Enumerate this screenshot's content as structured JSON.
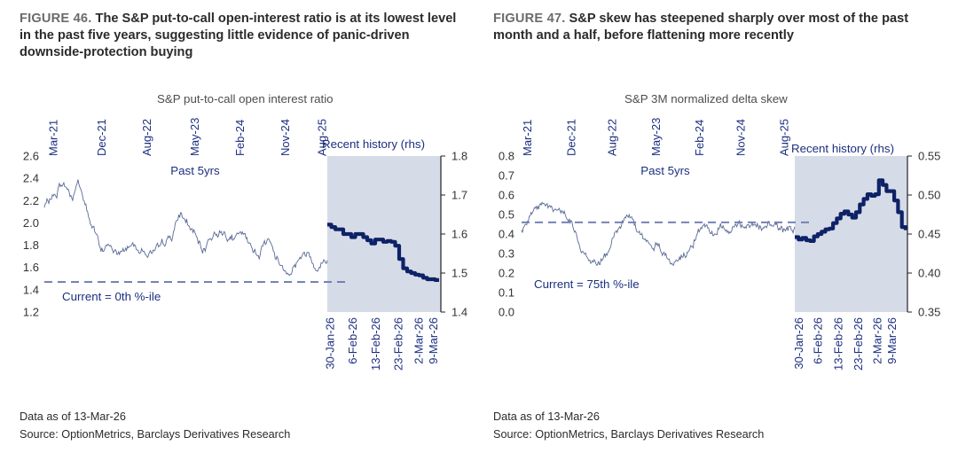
{
  "figures": [
    {
      "label": "FIGURE 46.",
      "title": "The S&P put-to-call open-interest ratio is at its lowest level in the past five years, suggesting little evidence of panic-driven downside-protection buying",
      "data_as_of": "Data as of 13-Mar-26",
      "source": "Source: OptionMetrics, Barclays Derivatives Research"
    },
    {
      "label": "FIGURE 47.",
      "title": "S&P skew has steepened sharply over most of the past month and a half, before flattening more recently",
      "data_as_of": "Data as of 13-Mar-26",
      "source": "Source: OptionMetrics, Barclays Derivatives Research"
    }
  ],
  "chart_data": [
    {
      "type": "line",
      "title": "S&P put-to-call open interest ratio",
      "panels": [
        {
          "name": "Past 5yrs",
          "axis": "left",
          "ylim": [
            1.2,
            2.6
          ],
          "yticks": [
            "1.2",
            "1.4",
            "1.6",
            "1.8",
            "2.0",
            "2.2",
            "2.4",
            "2.6"
          ],
          "xticks": [
            "Mar-21",
            "Dec-21",
            "Aug-22",
            "May-23",
            "Feb-24",
            "Nov-24",
            "Aug-25"
          ],
          "anchors": [
            [
              0,
              2.14
            ],
            [
              0.02,
              2.22
            ],
            [
              0.04,
              2.25
            ],
            [
              0.06,
              2.36
            ],
            [
              0.08,
              2.31
            ],
            [
              0.1,
              2.22
            ],
            [
              0.12,
              2.38
            ],
            [
              0.14,
              2.2
            ],
            [
              0.16,
              2.02
            ],
            [
              0.18,
              1.93
            ],
            [
              0.2,
              1.73
            ],
            [
              0.22,
              1.81
            ],
            [
              0.24,
              1.76
            ],
            [
              0.27,
              1.72
            ],
            [
              0.3,
              1.81
            ],
            [
              0.33,
              1.78
            ],
            [
              0.36,
              1.72
            ],
            [
              0.39,
              1.73
            ],
            [
              0.42,
              1.82
            ],
            [
              0.45,
              1.88
            ],
            [
              0.48,
              2.08
            ],
            [
              0.5,
              2.02
            ],
            [
              0.53,
              1.9
            ],
            [
              0.56,
              1.73
            ],
            [
              0.58,
              1.85
            ],
            [
              0.61,
              1.92
            ],
            [
              0.64,
              1.9
            ],
            [
              0.67,
              1.85
            ],
            [
              0.7,
              1.91
            ],
            [
              0.73,
              1.78
            ],
            [
              0.76,
              1.72
            ],
            [
              0.79,
              1.88
            ],
            [
              0.82,
              1.68
            ],
            [
              0.85,
              1.58
            ],
            [
              0.87,
              1.56
            ],
            [
              0.9,
              1.68
            ],
            [
              0.93,
              1.74
            ],
            [
              0.96,
              1.6
            ],
            [
              1.0,
              1.66
            ]
          ],
          "current_level": 1.47,
          "current_label": "Current = 0th %-ile"
        },
        {
          "name": "Recent history (rhs)",
          "axis": "right",
          "ylim": [
            1.4,
            1.8
          ],
          "yticks": [
            "1.4",
            "1.5",
            "1.6",
            "1.7",
            "1.8"
          ],
          "xticks": [
            "30-Jan-26",
            "6-Feb-26",
            "13-Feb-26",
            "23-Feb-26",
            "2-Mar-26",
            "9-Mar-26"
          ],
          "values": [
            1.624,
            1.618,
            1.612,
            1.612,
            1.6,
            1.6,
            1.592,
            1.6,
            1.6,
            1.592,
            1.584,
            1.576,
            1.586,
            1.586,
            1.58,
            1.582,
            1.58,
            1.57,
            1.536,
            1.512,
            1.504,
            1.5,
            1.496,
            1.494,
            1.488,
            1.484,
            1.484,
            1.482,
            1.482
          ]
        }
      ]
    },
    {
      "type": "line",
      "title": "S&P 3M normalized delta skew",
      "panels": [
        {
          "name": "Past 5yrs",
          "axis": "left",
          "ylim": [
            0.0,
            0.8
          ],
          "yticks": [
            "0.0",
            "0.1",
            "0.2",
            "0.3",
            "0.4",
            "0.5",
            "0.6",
            "0.7",
            "0.8"
          ],
          "xticks": [
            "Mar-21",
            "Dec-21",
            "Aug-22",
            "May-23",
            "Feb-24",
            "Nov-24",
            "Aug-25"
          ],
          "anchors": [
            [
              0,
              0.41
            ],
            [
              0.03,
              0.5
            ],
            [
              0.06,
              0.53
            ],
            [
              0.09,
              0.55
            ],
            [
              0.12,
              0.53
            ],
            [
              0.15,
              0.51
            ],
            [
              0.18,
              0.46
            ],
            [
              0.2,
              0.4
            ],
            [
              0.22,
              0.31
            ],
            [
              0.25,
              0.27
            ],
            [
              0.28,
              0.24
            ],
            [
              0.31,
              0.3
            ],
            [
              0.34,
              0.4
            ],
            [
              0.37,
              0.47
            ],
            [
              0.4,
              0.49
            ],
            [
              0.43,
              0.41
            ],
            [
              0.46,
              0.36
            ],
            [
              0.49,
              0.34
            ],
            [
              0.52,
              0.3
            ],
            [
              0.55,
              0.25
            ],
            [
              0.58,
              0.28
            ],
            [
              0.61,
              0.31
            ],
            [
              0.64,
              0.38
            ],
            [
              0.67,
              0.46
            ],
            [
              0.7,
              0.4
            ],
            [
              0.73,
              0.44
            ],
            [
              0.76,
              0.42
            ],
            [
              0.79,
              0.45
            ],
            [
              0.82,
              0.43
            ],
            [
              0.85,
              0.46
            ],
            [
              0.88,
              0.42
            ],
            [
              0.91,
              0.45
            ],
            [
              0.94,
              0.43
            ],
            [
              0.97,
              0.41
            ],
            [
              1.0,
              0.42
            ]
          ],
          "current_level": 0.46,
          "current_label": "Current = 75th %-ile"
        },
        {
          "name": "Recent history (rhs)",
          "axis": "right",
          "ylim": [
            0.35,
            0.55
          ],
          "yticks": [
            "0.35",
            "0.40",
            "0.45",
            "0.50",
            "0.55"
          ],
          "xticks": [
            "30-Jan-26",
            "6-Feb-26",
            "13-Feb-26",
            "23-Feb-26",
            "2-Mar-26",
            "9-Mar-26"
          ],
          "values": [
            0.446,
            0.443,
            0.445,
            0.442,
            0.441,
            0.447,
            0.45,
            0.453,
            0.456,
            0.457,
            0.464,
            0.47,
            0.476,
            0.479,
            0.475,
            0.471,
            0.478,
            0.488,
            0.495,
            0.501,
            0.499,
            0.501,
            0.519,
            0.513,
            0.505,
            0.505,
            0.493,
            0.478,
            0.459,
            0.455
          ]
        }
      ]
    }
  ],
  "colors": {
    "history_line": "#5b6a96",
    "recent_line": "#0d2266",
    "dashed": "#6b7bb0",
    "shade": "#d6dbe8",
    "axis": "#222222",
    "annot": "#1b2f80"
  }
}
